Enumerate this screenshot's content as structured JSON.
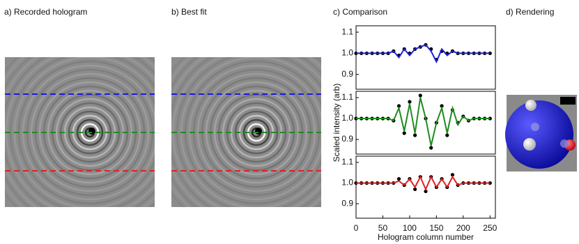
{
  "panels": [
    {
      "label": "a) Recorded hologram"
    },
    {
      "label": "b) Best fit"
    },
    {
      "label": "c) Comparison"
    },
    {
      "label": "d) Rendering"
    }
  ],
  "chart_data": [
    {
      "type": "line",
      "x": [
        0,
        10,
        20,
        30,
        40,
        50,
        60,
        70,
        80,
        90,
        100,
        110,
        120,
        130,
        140,
        150,
        160,
        170,
        180,
        190,
        200,
        210,
        220,
        230,
        240,
        250
      ],
      "series": [
        {
          "color": "#000000",
          "marker": "dot",
          "values": [
            1.0,
            1.0,
            1.0,
            1.0,
            1.0,
            1.0,
            1.0,
            1.01,
            0.99,
            1.02,
            1.0,
            1.02,
            1.03,
            1.04,
            1.02,
            0.97,
            1.01,
            1.0,
            1.01,
            1.0,
            1.0,
            1.0,
            1.0,
            1.0,
            1.0,
            1.0
          ]
        },
        {
          "color": "#2020d8",
          "marker": "line",
          "values": [
            1.0,
            1.0,
            1.0,
            1.0,
            1.0,
            1.0,
            1.0,
            1.01,
            0.98,
            1.02,
            0.99,
            1.02,
            1.03,
            1.04,
            1.01,
            0.96,
            1.02,
            0.99,
            1.01,
            1.0,
            1.0,
            1.0,
            1.0,
            1.0,
            1.0,
            1.0
          ]
        }
      ],
      "xlim": [
        0,
        260
      ],
      "ylim": [
        0.83,
        1.13
      ],
      "yticks": [
        0.9,
        {
          "value": 1.0,
          "label": "1.0"
        },
        1.1
      ]
    },
    {
      "type": "line",
      "ylabel": "Scaled intensity (arb)",
      "x": [
        0,
        10,
        20,
        30,
        40,
        50,
        60,
        70,
        80,
        90,
        100,
        110,
        120,
        130,
        140,
        150,
        160,
        170,
        180,
        190,
        200,
        210,
        220,
        230,
        240,
        250
      ],
      "series": [
        {
          "color": "#000000",
          "marker": "dot",
          "values": [
            1.0,
            1.0,
            1.0,
            1.0,
            1.0,
            1.0,
            1.0,
            0.99,
            1.06,
            0.93,
            1.08,
            0.92,
            1.11,
            1.0,
            0.86,
            0.98,
            1.06,
            0.92,
            1.04,
            0.98,
            1.01,
            0.99,
            1.0,
            1.0,
            1.0,
            1.0
          ]
        },
        {
          "color": "#1e8c1e",
          "marker": "line",
          "values": [
            1.0,
            1.0,
            1.0,
            1.0,
            1.0,
            1.0,
            1.0,
            0.99,
            1.05,
            0.94,
            1.07,
            0.93,
            1.1,
            1.0,
            0.87,
            0.98,
            1.05,
            0.93,
            1.05,
            0.97,
            1.01,
            0.99,
            1.0,
            1.0,
            1.0,
            1.0
          ]
        }
      ],
      "xlim": [
        0,
        260
      ],
      "ylim": [
        0.83,
        1.13
      ],
      "yticks": [
        0.9,
        {
          "value": 1.0,
          "label": "1.0"
        },
        1.1
      ]
    },
    {
      "type": "line",
      "xlabel": "Hologram column number",
      "x": [
        0,
        10,
        20,
        30,
        40,
        50,
        60,
        70,
        80,
        90,
        100,
        110,
        120,
        130,
        140,
        150,
        160,
        170,
        180,
        190,
        200,
        210,
        220,
        230,
        240,
        250
      ],
      "series": [
        {
          "color": "#000000",
          "marker": "dot",
          "values": [
            1.0,
            1.0,
            1.0,
            1.0,
            1.0,
            1.0,
            1.0,
            1.0,
            1.02,
            0.99,
            1.02,
            0.97,
            1.03,
            0.96,
            1.03,
            0.98,
            1.02,
            0.98,
            1.04,
            0.99,
            1.0,
            1.0,
            1.0,
            1.0,
            1.0,
            1.0
          ]
        },
        {
          "color": "#e02020",
          "marker": "line",
          "values": [
            1.0,
            1.0,
            1.0,
            1.0,
            1.0,
            1.0,
            1.0,
            1.0,
            1.01,
            0.99,
            1.02,
            0.98,
            1.03,
            0.97,
            1.03,
            0.98,
            1.02,
            0.98,
            1.03,
            0.99,
            1.0,
            1.0,
            1.0,
            1.0,
            1.0,
            1.0
          ]
        }
      ],
      "xlim": [
        0,
        260
      ],
      "ylim": [
        0.83,
        1.13
      ],
      "xticks": [
        0,
        50,
        100,
        150,
        200,
        250
      ],
      "yticks": [
        0.9,
        {
          "value": 1.0,
          "label": "1.0"
        },
        1.1
      ]
    }
  ]
}
